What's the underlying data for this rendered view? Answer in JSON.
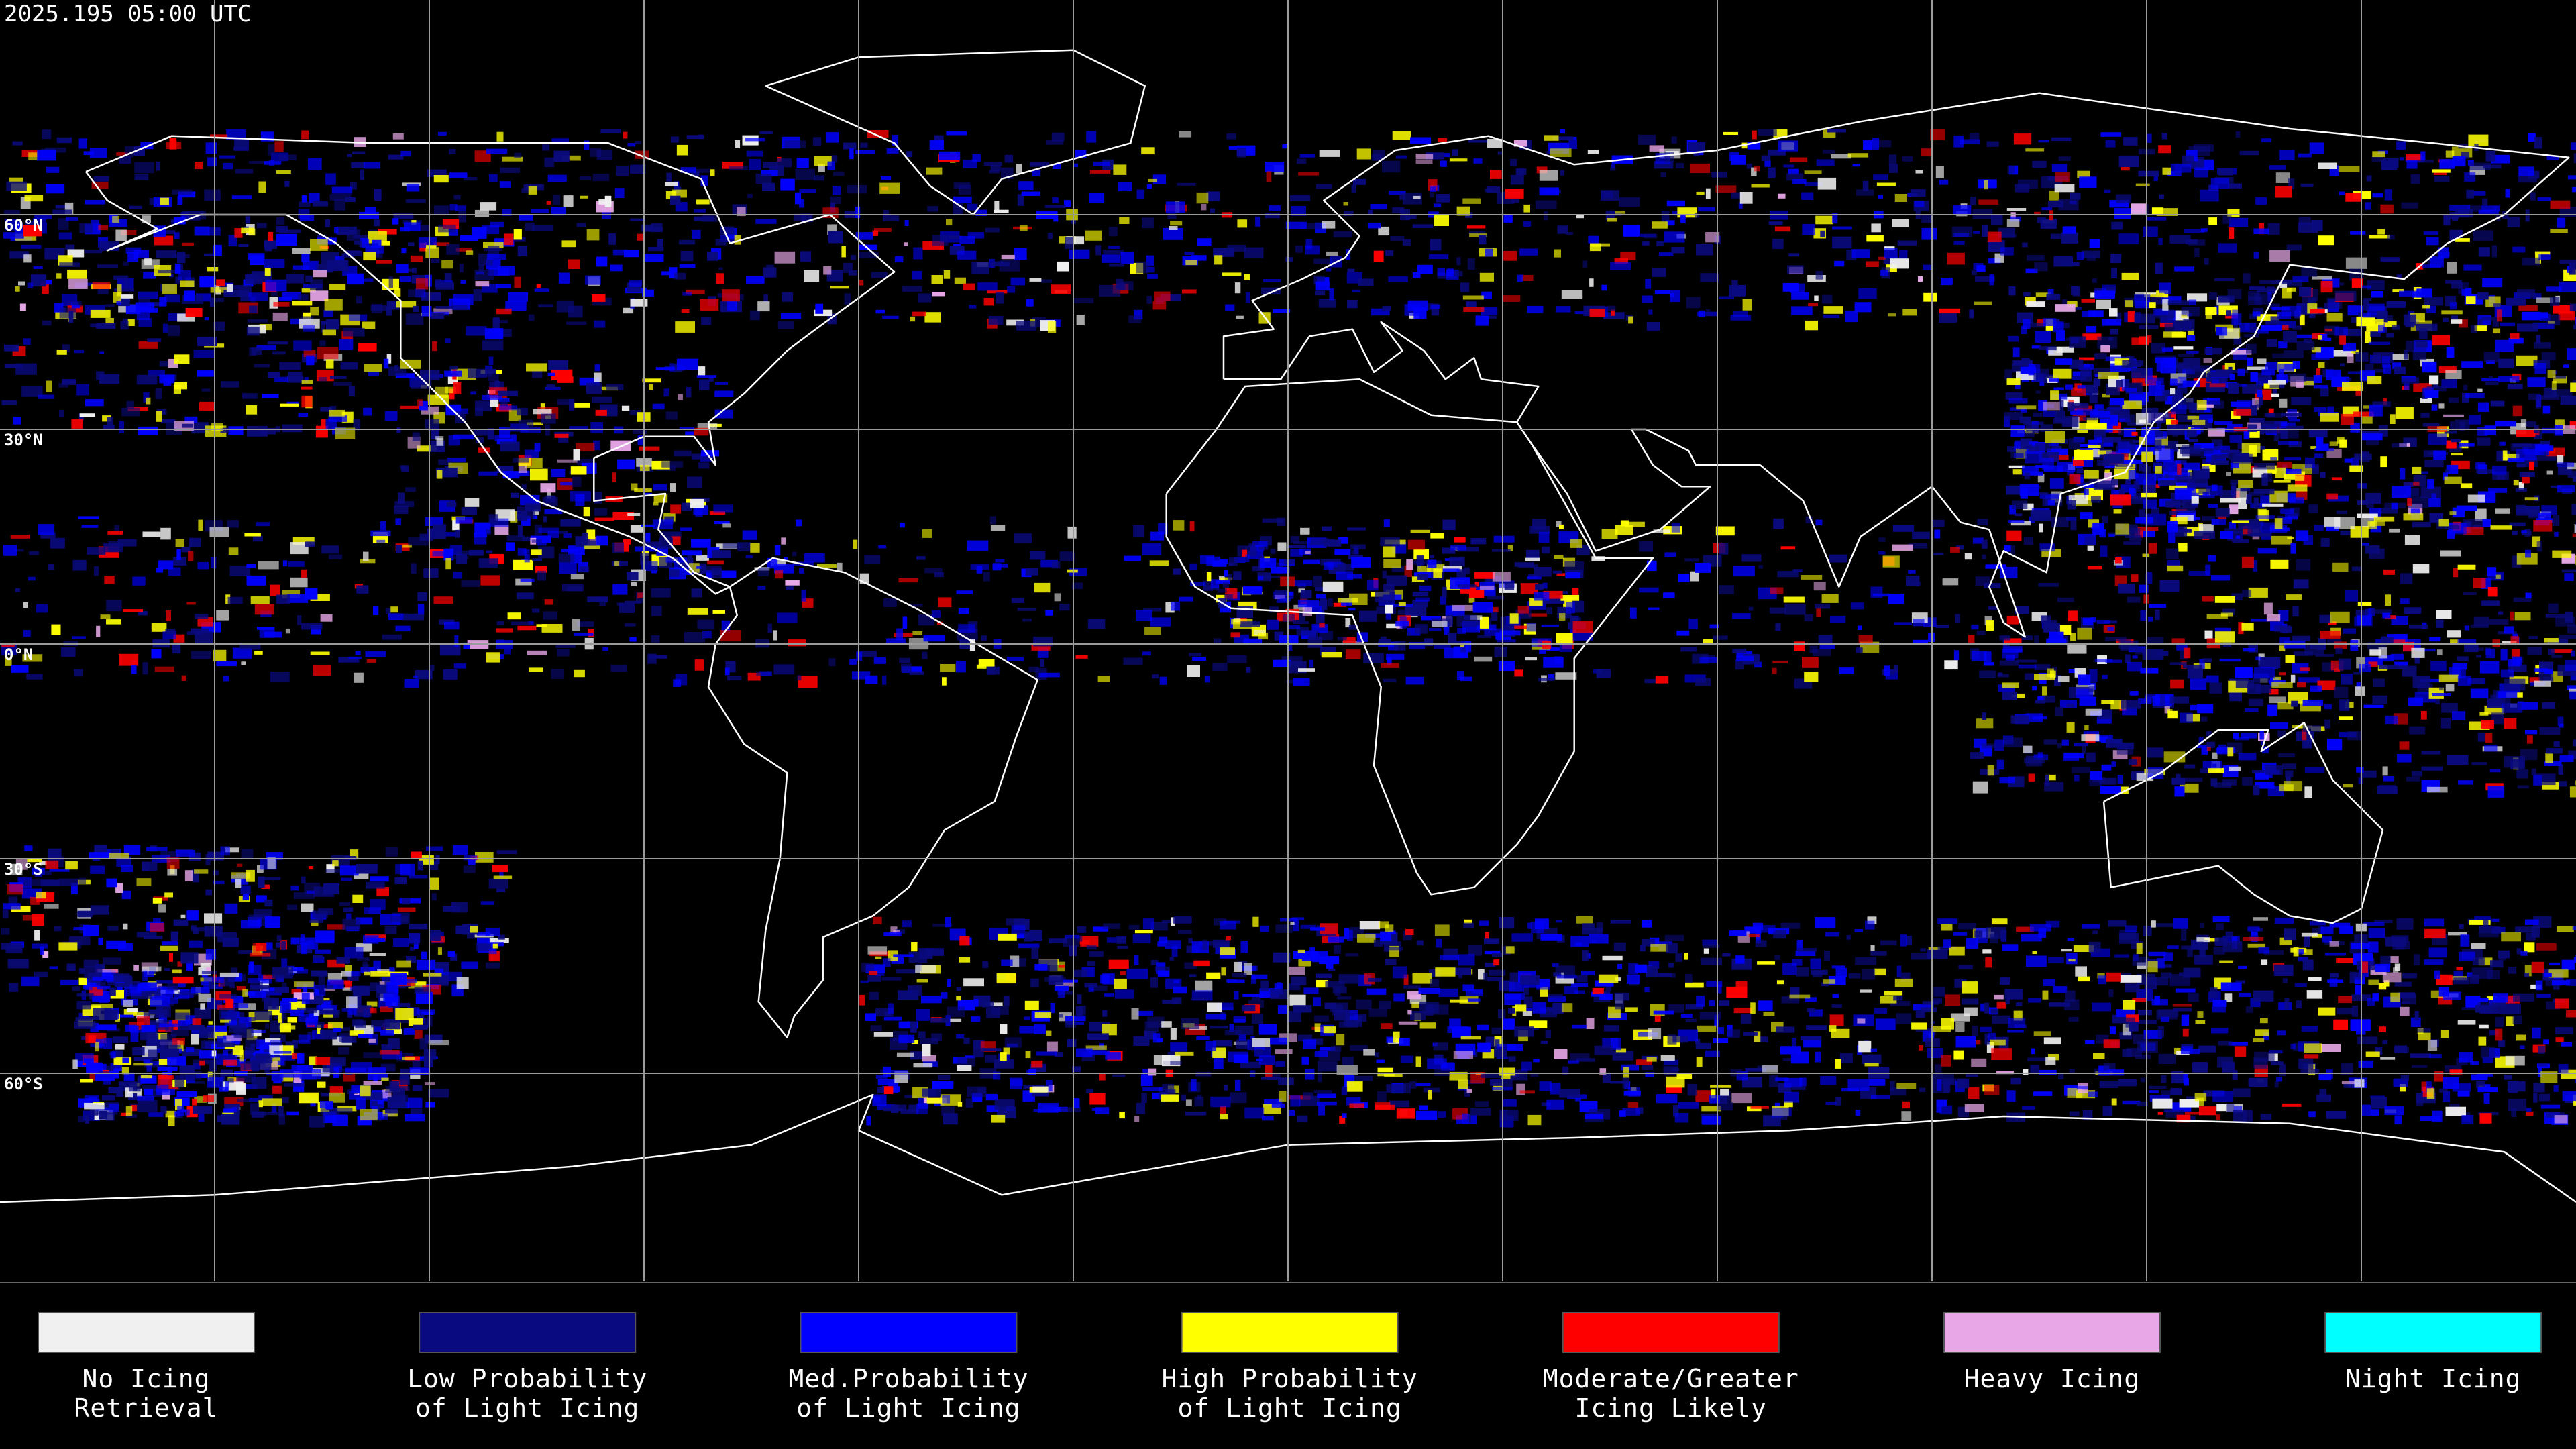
{
  "header": {
    "timestamp": "2025.195 05:00 UTC"
  },
  "map": {
    "latitude_labels": [
      "60°N",
      "30°N",
      "0°N",
      "30°S",
      "60°S"
    ]
  },
  "legend": {
    "items": [
      {
        "label": [
          "No Icing",
          "Retrieval"
        ],
        "color": "#f0f0f0"
      },
      {
        "label": [
          "Low Probability",
          "of Light Icing"
        ],
        "color": "#0a0a80"
      },
      {
        "label": [
          "Med.Probability",
          "of Light Icing"
        ],
        "color": "#0000ff"
      },
      {
        "label": [
          "High Probability",
          "of Light Icing"
        ],
        "color": "#ffff00"
      },
      {
        "label": [
          "Moderate/Greater",
          "Icing Likely"
        ],
        "color": "#ff0000"
      },
      {
        "label": [
          "Heavy Icing"
        ],
        "color": "#e8a8e8"
      },
      {
        "label": [
          "Night Icing"
        ],
        "color": "#00ffff"
      }
    ]
  }
}
